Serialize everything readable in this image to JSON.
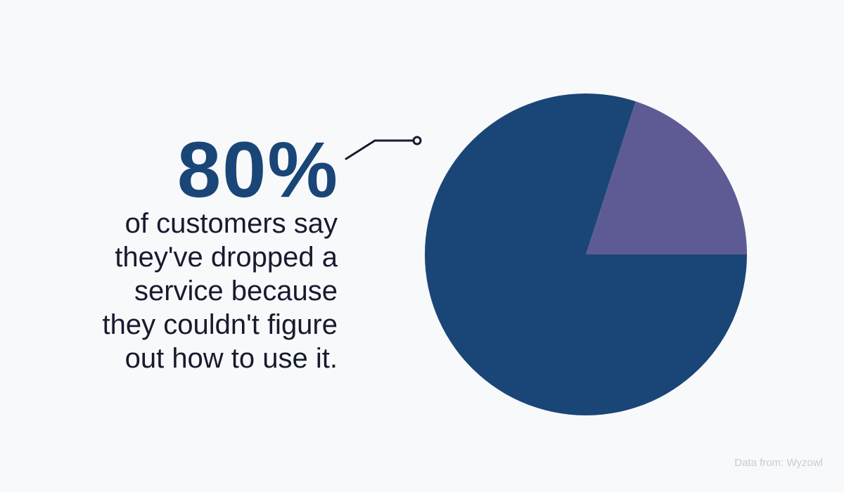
{
  "headline": {
    "value": "80%",
    "description_lines": [
      "of customers say",
      "they've dropped a",
      "service because",
      "they couldn't figure",
      "out how to use it."
    ]
  },
  "source": "Data from: Wyzowl",
  "chart_data": {
    "type": "pie",
    "values": [
      80,
      20
    ],
    "colors": [
      "#1a4677",
      "#5e5b94"
    ],
    "start": "20% slice begins at 3 o'clock, drawn counterclockwise"
  }
}
